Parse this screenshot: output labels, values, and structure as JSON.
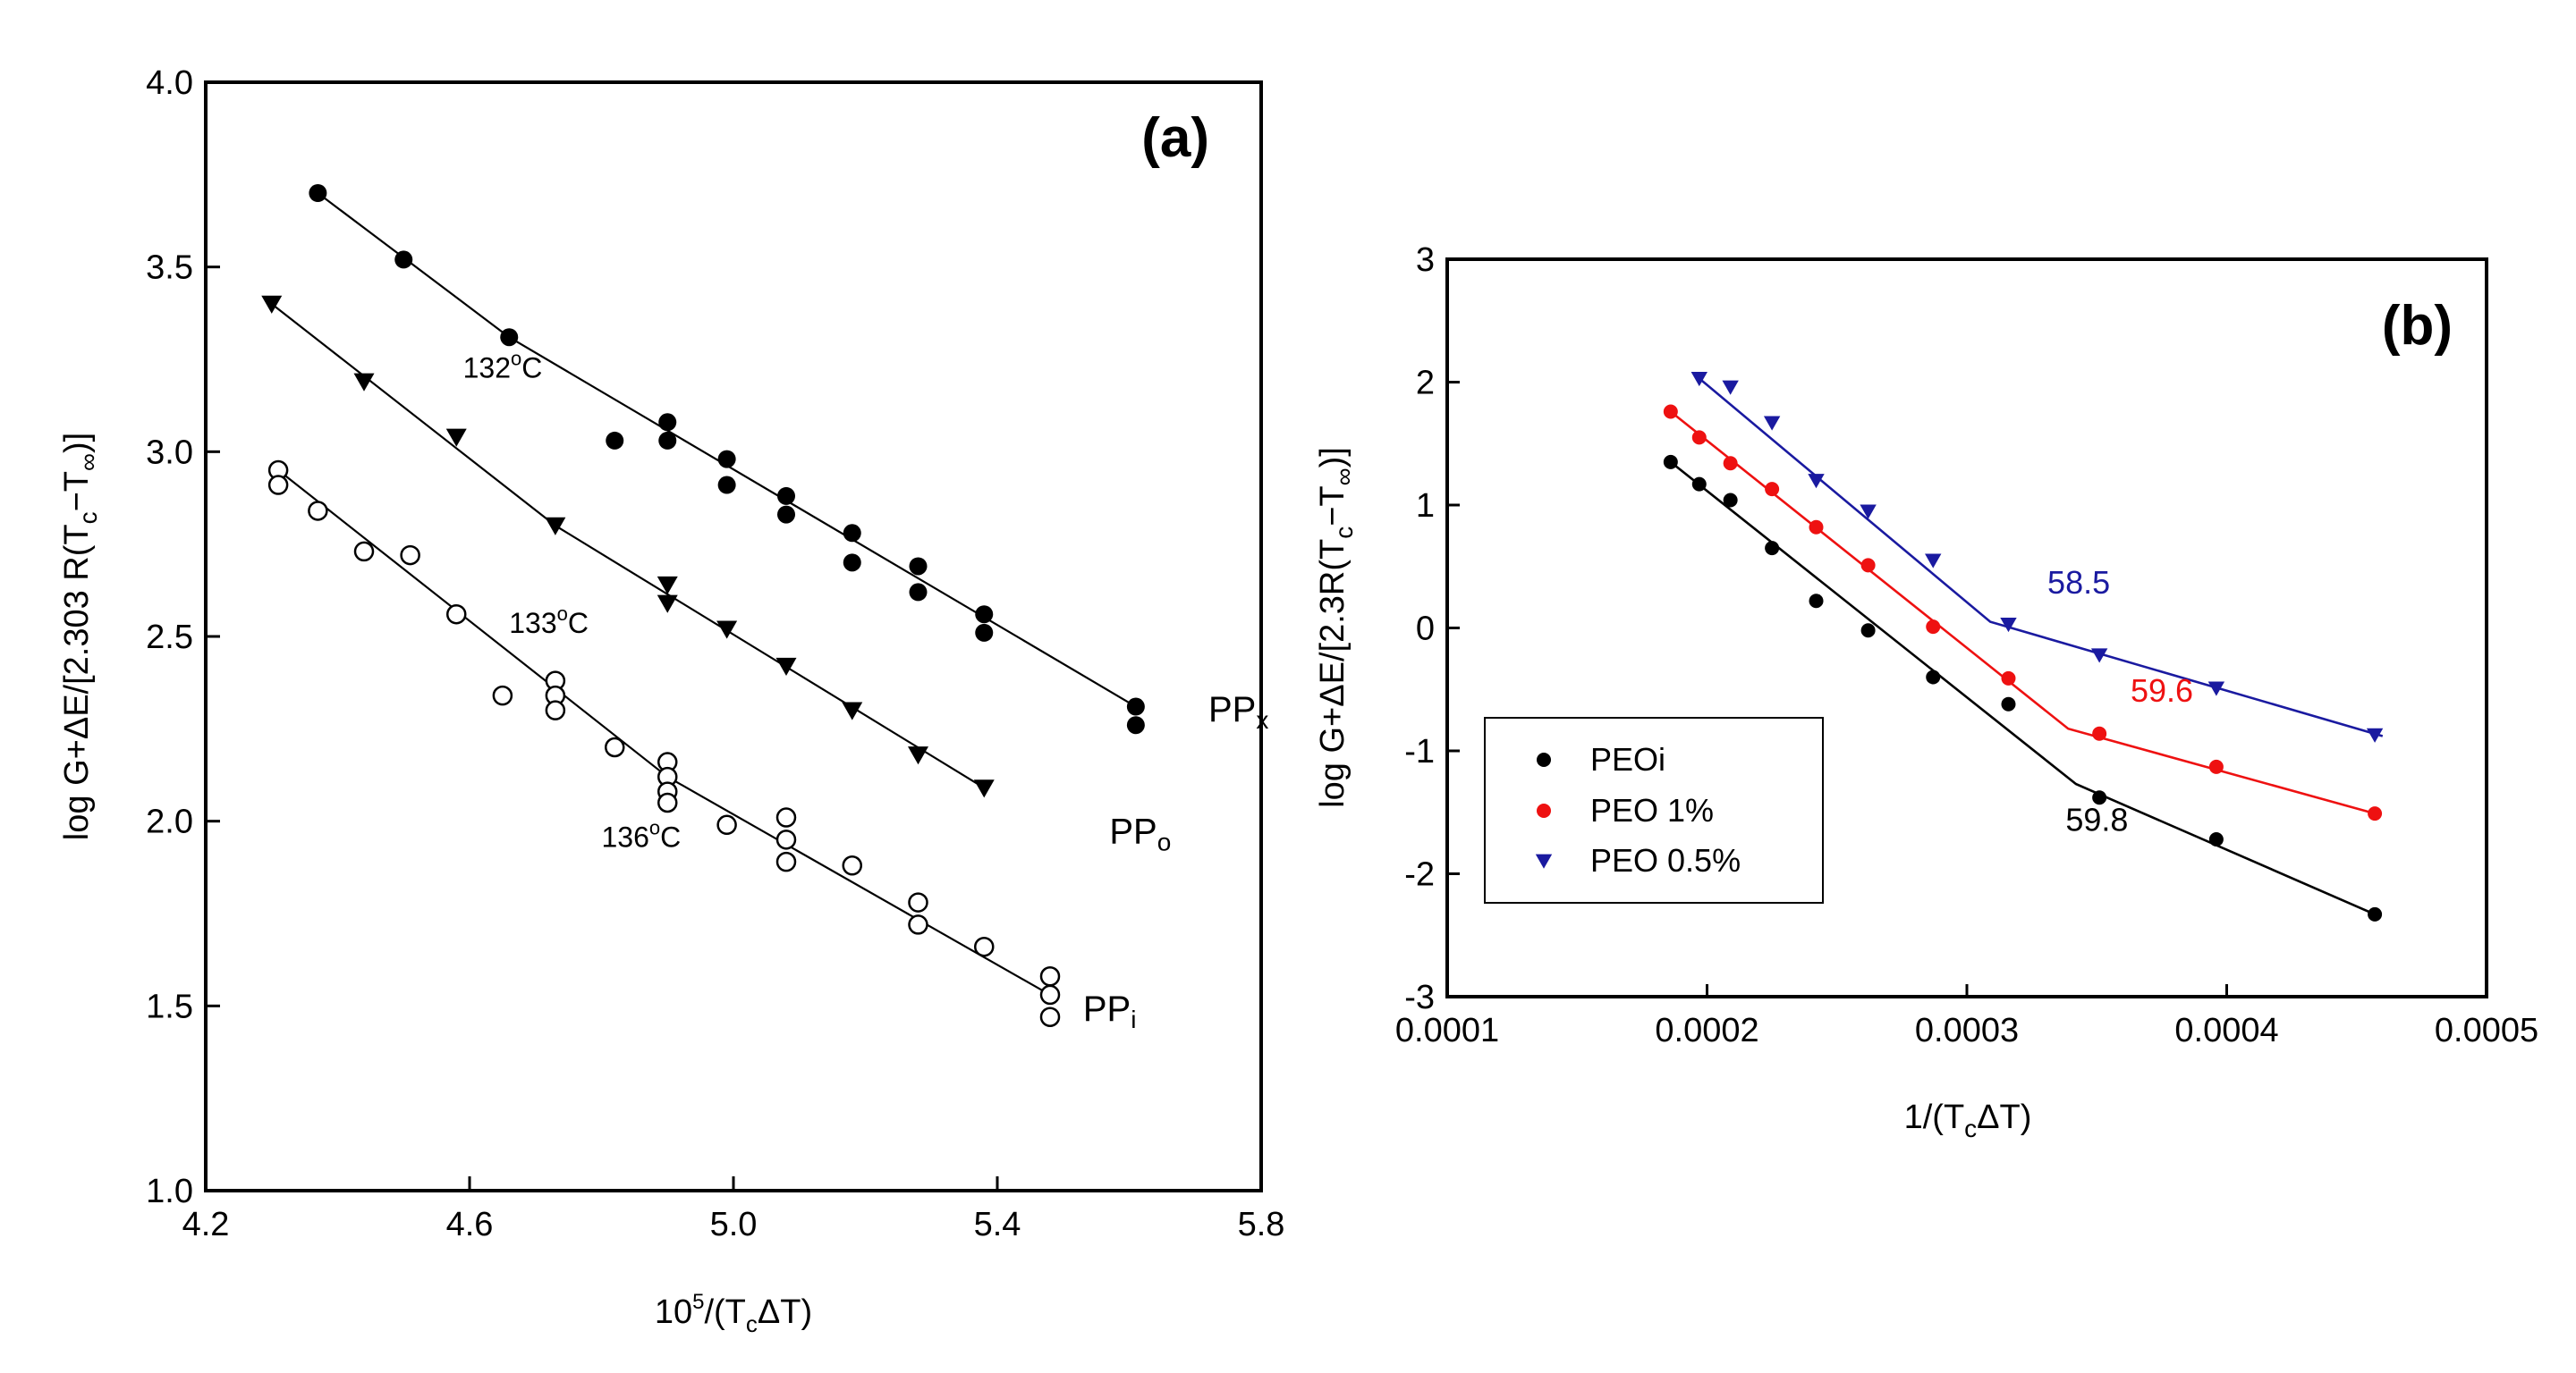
{
  "chart_data": [
    {
      "type": "scatter",
      "panel": "(a)",
      "xlabel": "10^5/(TcΔT)",
      "xlabel_parts": {
        "base": "10",
        "exp": "5",
        "mid": "/(T",
        "sub": "c",
        "tail": "ΔT)"
      },
      "ylabel": "log G+ΔE/[2.303 R(Tc−T∞)]",
      "ylabel_parts": {
        "main": "log G+ΔE/[2.303 R(T",
        "sub1": "c",
        "mid": "−T",
        "sub2": "∞",
        "tail": ")]"
      },
      "xlim": [
        4.2,
        5.8
      ],
      "ylim": [
        1.0,
        4.0
      ],
      "xticks": [
        4.2,
        4.6,
        5.0,
        5.4,
        5.8
      ],
      "xtick_labels": [
        "4.2",
        "4.6",
        "5.0",
        "5.4",
        "5.8"
      ],
      "yticks": [
        1.0,
        1.5,
        2.0,
        2.5,
        3.0,
        3.5,
        4.0
      ],
      "ytick_labels": [
        "1.0",
        "1.5",
        "2.0",
        "2.5",
        "3.0",
        "3.5",
        "4.0"
      ],
      "series": [
        {
          "name": "PPx",
          "label_main": "PP",
          "label_sub": "x",
          "label_at": [
            5.72,
            2.27
          ],
          "marker": "filled-circle",
          "color": "#000000",
          "x": [
            4.37,
            4.5,
            4.66,
            4.82,
            4.9,
            4.9,
            4.99,
            4.99,
            5.08,
            5.08,
            5.18,
            5.18,
            5.28,
            5.28,
            5.38,
            5.38,
            5.61,
            5.61
          ],
          "y": [
            3.7,
            3.52,
            3.31,
            3.03,
            3.08,
            3.03,
            2.98,
            2.91,
            2.88,
            2.83,
            2.78,
            2.7,
            2.69,
            2.62,
            2.56,
            2.51,
            2.31,
            2.26
          ],
          "fit": [
            [
              [
                4.37,
                3.7
              ],
              [
                4.66,
                3.31
              ]
            ],
            [
              [
                4.66,
                3.31
              ],
              [
                5.61,
                2.31
              ]
            ]
          ]
        },
        {
          "name": "PPo",
          "label_main": "PP",
          "label_sub": "o",
          "label_at": [
            5.57,
            1.94
          ],
          "marker": "filled-triangle-down",
          "color": "#000000",
          "x": [
            4.3,
            4.44,
            4.58,
            4.73,
            4.9,
            4.9,
            4.99,
            5.08,
            5.18,
            5.28,
            5.38
          ],
          "y": [
            3.4,
            3.19,
            3.04,
            2.8,
            2.64,
            2.59,
            2.52,
            2.42,
            2.3,
            2.18,
            2.09
          ],
          "fit": [
            [
              [
                4.3,
                3.4
              ],
              [
                4.73,
                2.8
              ]
            ],
            [
              [
                4.73,
                2.8
              ],
              [
                5.38,
                2.09
              ]
            ]
          ]
        },
        {
          "name": "PPi",
          "label_main": "PP",
          "label_sub": "i",
          "label_at": [
            5.53,
            1.46
          ],
          "marker": "open-circle",
          "color": "#000000",
          "x": [
            4.31,
            4.31,
            4.37,
            4.44,
            4.51,
            4.58,
            4.65,
            4.73,
            4.73,
            4.73,
            4.82,
            4.9,
            4.9,
            4.9,
            4.9,
            4.99,
            5.08,
            5.08,
            5.08,
            5.18,
            5.28,
            5.28,
            5.38,
            5.48,
            5.48,
            5.48
          ],
          "y": [
            2.95,
            2.91,
            2.84,
            2.73,
            2.72,
            2.56,
            2.34,
            2.38,
            2.34,
            2.3,
            2.2,
            2.16,
            2.12,
            2.08,
            2.05,
            1.99,
            2.01,
            1.95,
            1.89,
            1.88,
            1.78,
            1.72,
            1.66,
            1.58,
            1.53,
            1.47
          ],
          "fit": [
            [
              [
                4.31,
                2.95
              ],
              [
                4.9,
                2.12
              ]
            ],
            [
              [
                4.9,
                2.12
              ],
              [
                5.48,
                1.53
              ]
            ]
          ]
        }
      ],
      "annotations": [
        {
          "main": "132",
          "sup": "o",
          "tail": "C",
          "at": [
            4.59,
            3.2
          ]
        },
        {
          "main": "133",
          "sup": "o",
          "tail": "C",
          "at": [
            4.66,
            2.51
          ]
        },
        {
          "main": "136",
          "sup": "o",
          "tail": "C",
          "at": [
            4.8,
            1.93
          ]
        }
      ]
    },
    {
      "type": "scatter",
      "panel": "(b)",
      "xlabel": "1/(TcΔT)",
      "xlabel_parts": {
        "main": "1/(T",
        "sub": "c",
        "tail": "ΔT)"
      },
      "ylabel": "log G+ΔE/[2.3R(Tc−T∞)]",
      "ylabel_parts": {
        "main": "log G+ΔE/[2.3R(T",
        "sub1": "c",
        "mid": "−T",
        "sub2": "∞",
        "tail": ")]"
      },
      "xlim": [
        0.0001,
        0.0005
      ],
      "ylim": [
        -3,
        3
      ],
      "xticks": [
        0.0001,
        0.0002,
        0.0003,
        0.0004,
        0.0005
      ],
      "xtick_labels": [
        "0.0001",
        "0.0002",
        "0.0003",
        "0.0004",
        "0.0005"
      ],
      "yticks": [
        -3,
        -2,
        -1,
        0,
        1,
        2,
        3
      ],
      "ytick_labels": [
        "-3",
        "-2",
        "-1",
        "0",
        "1",
        "2",
        "3"
      ],
      "legend": {
        "position": "lower-left",
        "entries": [
          "PEOi",
          "PEO 1%",
          "PEO 0.5%"
        ]
      },
      "series": [
        {
          "name": "PEOi",
          "color": "#000000",
          "marker": "filled-circle",
          "x": [
            0.000186,
            0.000197,
            0.000209,
            0.000225,
            0.000242,
            0.000262,
            0.000287,
            0.000316,
            0.000351,
            0.000396,
            0.000457
          ],
          "y": [
            1.35,
            1.17,
            1.04,
            0.65,
            0.22,
            -0.02,
            -0.4,
            -0.62,
            -1.38,
            -1.72,
            -2.33
          ],
          "fit": [
            [
              0.000186,
              1.35
            ],
            [
              0.000342,
              -1.27
            ],
            [
              0.000457,
              -2.33
            ]
          ]
        },
        {
          "name": "PEO 1%",
          "color": "#ee1111",
          "marker": "filled-circle",
          "x": [
            0.000186,
            0.000197,
            0.000209,
            0.000225,
            0.000242,
            0.000262,
            0.000287,
            0.000316,
            0.000351,
            0.000396,
            0.000457
          ],
          "y": [
            1.76,
            1.55,
            1.34,
            1.13,
            0.82,
            0.51,
            0.01,
            -0.41,
            -0.86,
            -1.13,
            -1.51
          ],
          "fit": [
            [
              0.000186,
              1.76
            ],
            [
              0.000339,
              -0.82
            ],
            [
              0.000457,
              -1.51
            ]
          ]
        },
        {
          "name": "PEO 0.5%",
          "color": "#1a1aa0",
          "marker": "filled-triangle-down",
          "x": [
            0.000197,
            0.000209,
            0.000225,
            0.000242,
            0.000262,
            0.000287,
            0.000316,
            0.000351,
            0.000396,
            0.000457
          ],
          "y": [
            2.03,
            1.96,
            1.67,
            1.2,
            0.95,
            0.55,
            0.03,
            -0.22,
            -0.49,
            -0.87
          ],
          "fit": [
            [
              0.000197,
              2.03
            ],
            [
              0.000309,
              0.05
            ],
            [
              0.00046,
              -0.88
            ]
          ]
        }
      ],
      "annotations": [
        {
          "text": "58.5",
          "color": "#1a1aa0",
          "at": [
            0.000331,
            0.28
          ]
        },
        {
          "text": "59.6",
          "color": "#ee1111",
          "at": [
            0.000363,
            -0.6
          ]
        },
        {
          "text": "59.8",
          "color": "#000000",
          "at": [
            0.000338,
            -1.65
          ]
        }
      ]
    }
  ]
}
